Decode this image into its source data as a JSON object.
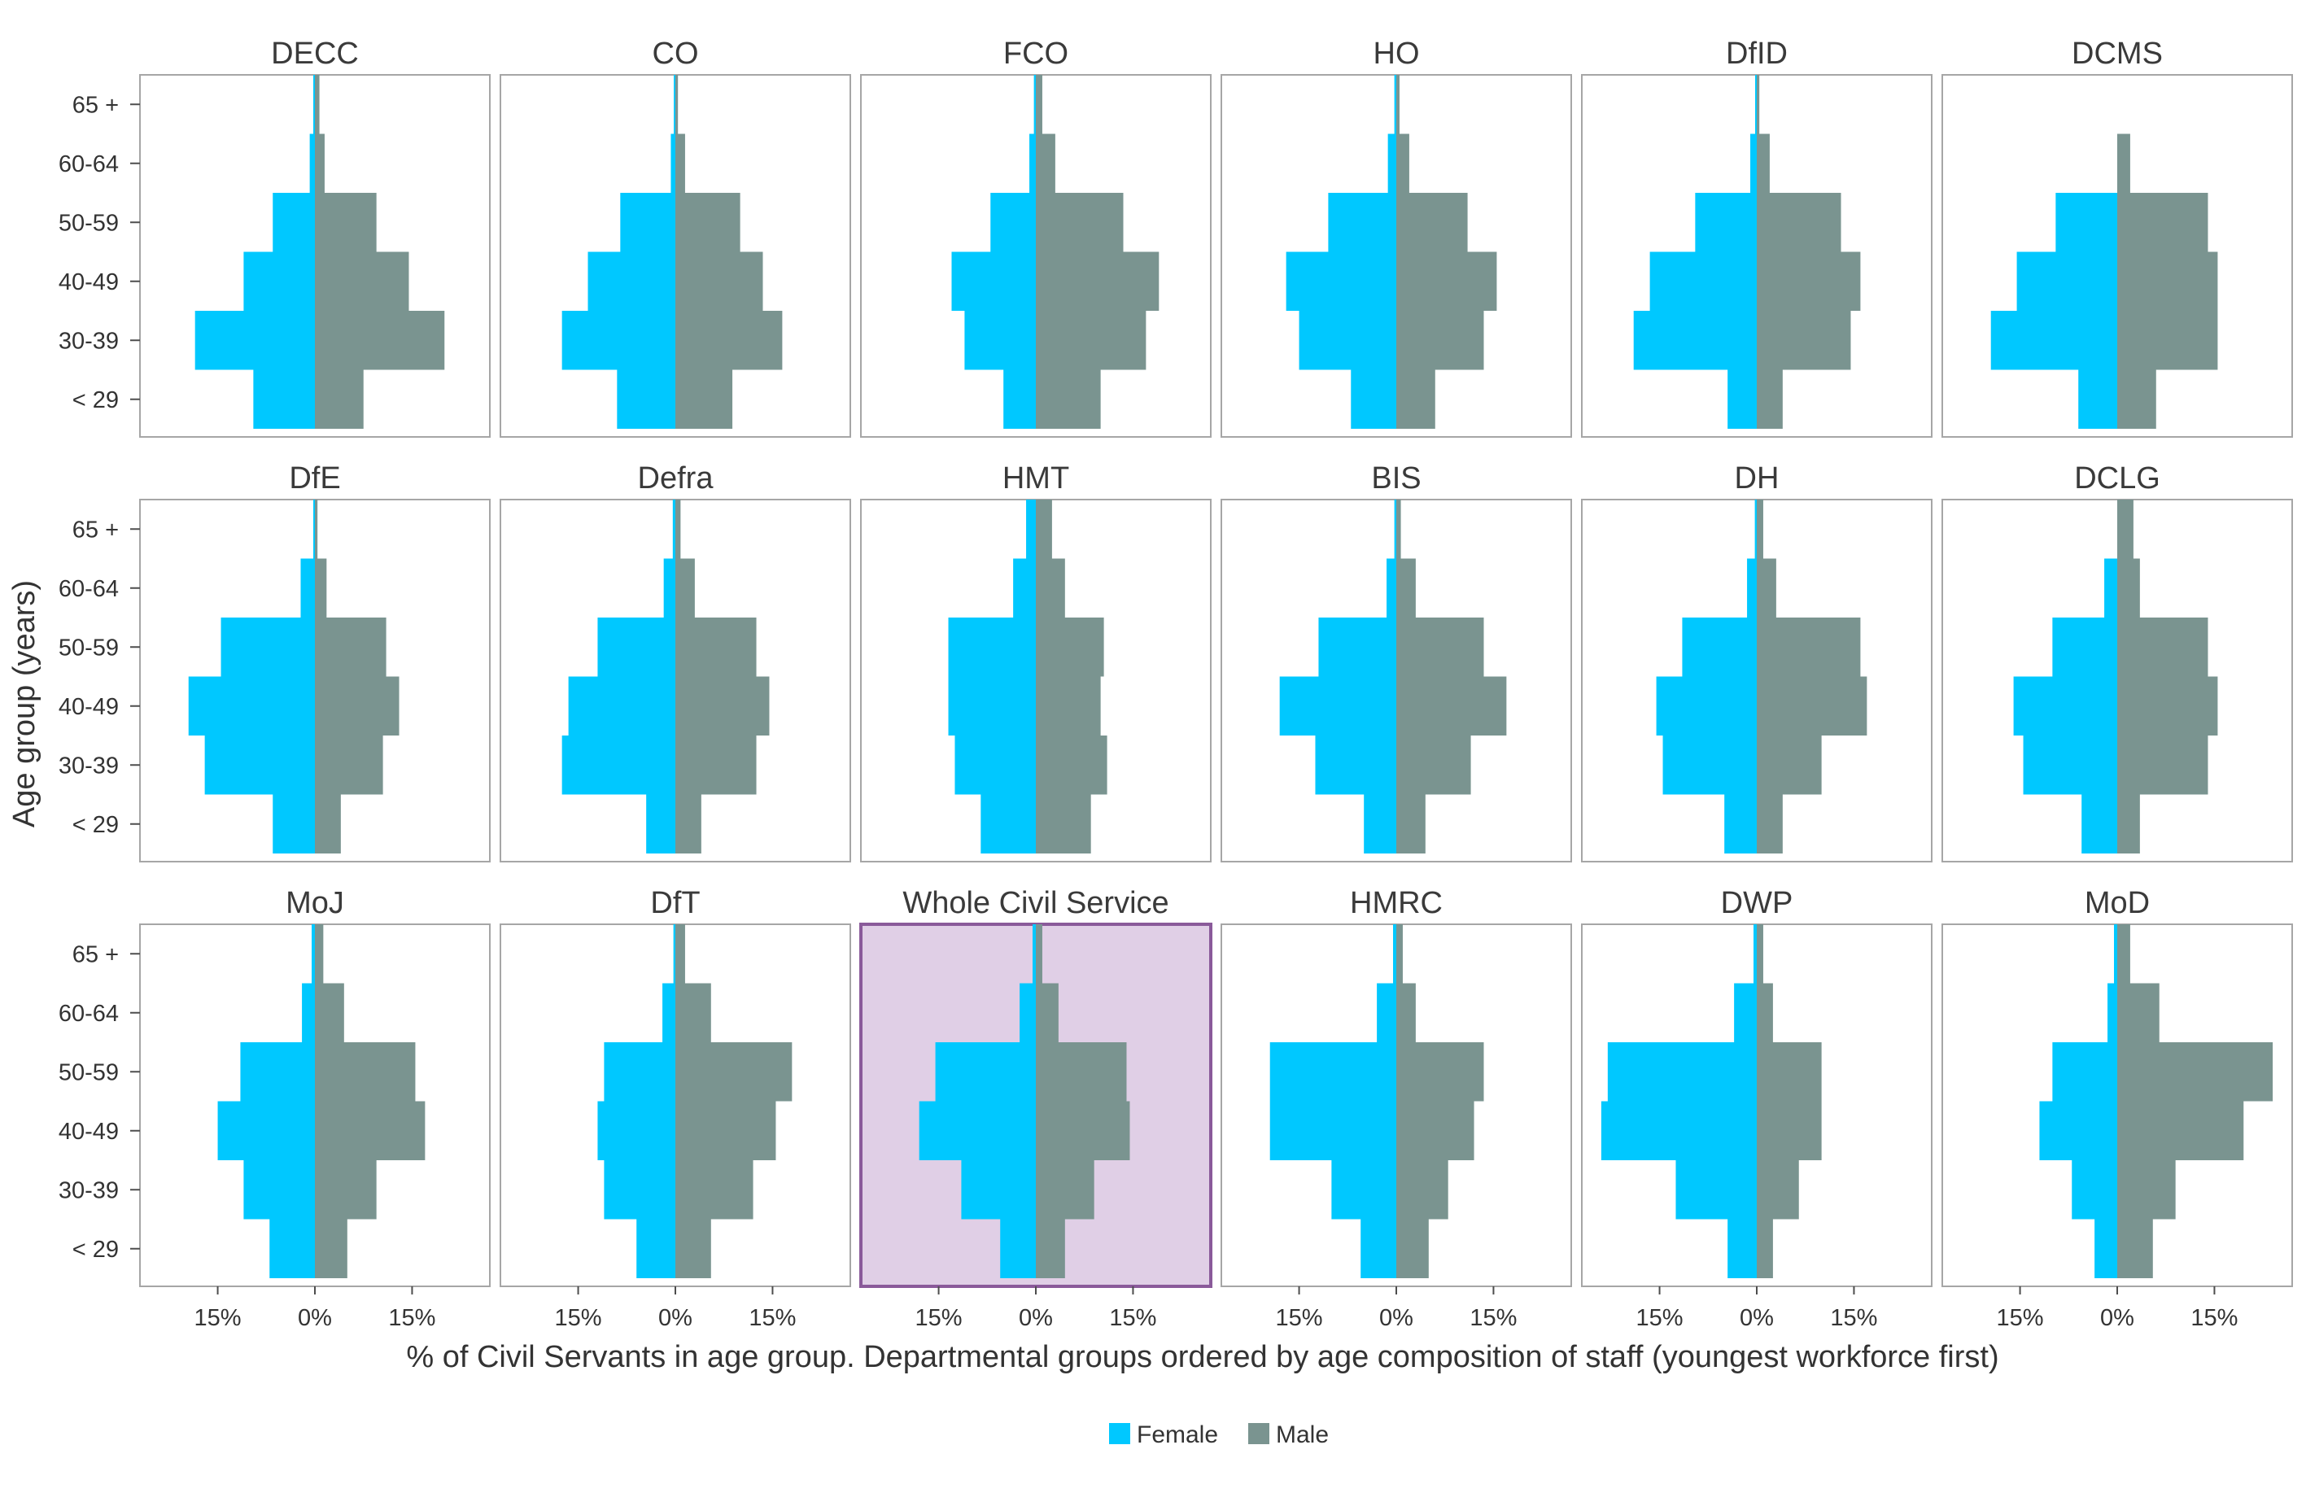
{
  "chart_data": {
    "type": "bar",
    "layout": "small-multiples-population-pyramid",
    "xlabel": "% of Civil Servants in age group. Departmental groups ordered by age composition of staff (youngest workforce first)",
    "ylabel": "Age group (years)",
    "age_groups": [
      "< 29",
      "30-39",
      "40-49",
      "50-59",
      "60-64",
      "65 +"
    ],
    "x_ticks": [
      {
        "value": -15,
        "label": "15%"
      },
      {
        "value": 0,
        "label": "0%"
      },
      {
        "value": 15,
        "label": "15%"
      }
    ],
    "xlim": [
      -27,
      27
    ],
    "legend": {
      "position": "bottom",
      "entries": [
        {
          "name": "Female",
          "color": "#00c8ff"
        },
        {
          "name": "Male",
          "color": "#7a9490"
        }
      ]
    },
    "colors": {
      "female": "#00c8ff",
      "male": "#7a9490",
      "highlight_fill": "#e0cfe6",
      "highlight_border": "#8a5a9a",
      "panel_border": "#a6a6a6"
    },
    "panels": [
      {
        "name": "DECC",
        "female": [
          9.5,
          18.5,
          11,
          6.5,
          0.8,
          0.2
        ],
        "male": [
          7.5,
          20,
          14.5,
          9.5,
          1.5,
          0.7
        ]
      },
      {
        "name": "CO",
        "female": [
          9,
          17.5,
          13.5,
          8.5,
          0.7,
          0.2
        ],
        "male": [
          8.8,
          16.5,
          13.5,
          10,
          1.5,
          0.4
        ]
      },
      {
        "name": "FCO",
        "female": [
          5,
          11,
          13,
          7,
          1,
          0.3
        ],
        "male": [
          10,
          17,
          19,
          13.5,
          3,
          1
        ]
      },
      {
        "name": "HO",
        "female": [
          7,
          15,
          17,
          10.5,
          1.3,
          0.3
        ],
        "male": [
          6,
          13.5,
          15.5,
          11,
          2,
          0.5
        ]
      },
      {
        "name": "DfID",
        "female": [
          4.5,
          19,
          16.5,
          9.5,
          1,
          0.2
        ],
        "male": [
          4,
          14.5,
          16,
          13,
          2,
          0.4
        ]
      },
      {
        "name": "DCMS",
        "female": [
          6,
          19.5,
          15.5,
          9.5,
          0,
          0
        ],
        "male": [
          6,
          15.5,
          15.5,
          14,
          2,
          0
        ]
      },
      {
        "name": "DfE",
        "female": [
          6.5,
          17,
          19.5,
          14.5,
          2.2,
          0.2
        ],
        "male": [
          4,
          10.5,
          13,
          11,
          1.8,
          0.4
        ]
      },
      {
        "name": "Defra",
        "female": [
          4.5,
          17.5,
          16.5,
          12,
          1.8,
          0.4
        ],
        "male": [
          4,
          12.5,
          14.5,
          12.5,
          3,
          0.8
        ]
      },
      {
        "name": "HMT",
        "female": [
          8.5,
          12.5,
          13.5,
          13.5,
          3.5,
          1.5
        ],
        "male": [
          8.5,
          11,
          10,
          10.5,
          4.5,
          2.5
        ]
      },
      {
        "name": "BIS",
        "female": [
          5,
          12.5,
          18,
          12,
          1.5,
          0.3
        ],
        "male": [
          4.5,
          11.5,
          17,
          13.5,
          3,
          0.7
        ]
      },
      {
        "name": "DH",
        "female": [
          5,
          14.5,
          15.5,
          11.5,
          1.5,
          0.3
        ],
        "male": [
          4,
          10,
          17,
          16,
          3,
          1
        ]
      },
      {
        "name": "DCLG",
        "female": [
          5.5,
          14.5,
          16,
          10,
          2,
          0
        ],
        "male": [
          3.5,
          14,
          15.5,
          14,
          3.5,
          2.5
        ]
      },
      {
        "name": "MoJ",
        "female": [
          7,
          11,
          15,
          11.5,
          2,
          0.5
        ],
        "male": [
          5,
          9.5,
          17,
          15.5,
          4.5,
          1.3
        ]
      },
      {
        "name": "DfT",
        "female": [
          6,
          11,
          12,
          11,
          2,
          0.3
        ],
        "male": [
          5.5,
          12,
          15.5,
          18,
          5.5,
          1.5
        ]
      },
      {
        "name": "Whole Civil Service",
        "highlight": true,
        "female": [
          5.5,
          11.5,
          18,
          15.5,
          2.5,
          0.5
        ],
        "male": [
          4.5,
          9,
          14.5,
          14,
          3.5,
          1
        ]
      },
      {
        "name": "HMRC",
        "female": [
          5.5,
          10,
          19.5,
          19.5,
          3,
          0.5
        ],
        "male": [
          5,
          8,
          12,
          13.5,
          3,
          1
        ]
      },
      {
        "name": "DWP",
        "female": [
          4.5,
          12.5,
          24,
          23,
          3.5,
          0.5
        ],
        "male": [
          2.5,
          6.5,
          10,
          10,
          2.5,
          1
        ]
      },
      {
        "name": "MoD",
        "female": [
          3.5,
          7,
          12,
          10,
          1.5,
          0.5
        ],
        "male": [
          5.5,
          9,
          19.5,
          24,
          6.5,
          2
        ]
      }
    ]
  }
}
